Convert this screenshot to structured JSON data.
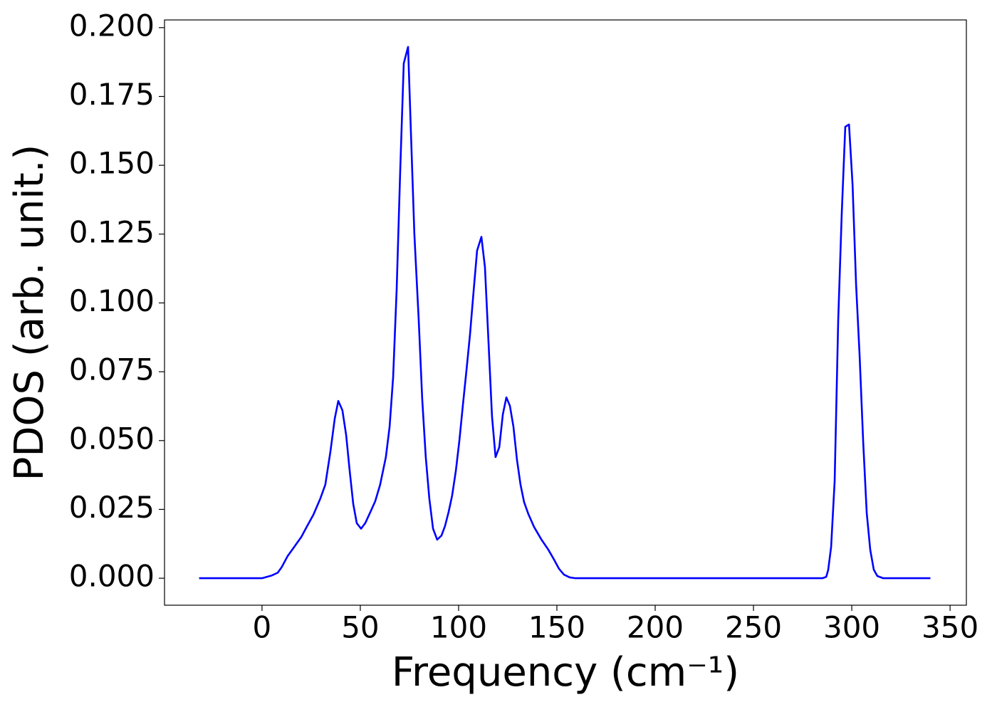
{
  "chart_data": {
    "type": "line",
    "xlabel": "Frequency (cm⁻¹)",
    "ylabel": "PDOS (arb. unit.)",
    "xlim": [
      -49.6,
      358.3
    ],
    "ylim": [
      -0.0098,
      0.2028
    ],
    "xticks": [
      0,
      50,
      100,
      150,
      200,
      250,
      300,
      350
    ],
    "yticks": [
      {
        "value": 0,
        "label": "0.000"
      },
      {
        "value": 0.025,
        "label": "0.025"
      },
      {
        "value": 0.05,
        "label": "0.050"
      },
      {
        "value": 0.075,
        "label": "0.075"
      },
      {
        "value": 0.1,
        "label": "0.100"
      },
      {
        "value": 0.125,
        "label": "0.125"
      },
      {
        "value": 0.15,
        "label": "0.150"
      },
      {
        "value": 0.175,
        "label": "0.175"
      },
      {
        "value": 0.2,
        "label": "0.200"
      }
    ],
    "grid": false,
    "series": [
      {
        "color": "#0000ff",
        "x": [
          -32,
          0,
          5,
          8,
          10,
          13,
          16,
          20,
          23,
          26.1,
          29.7,
          32.2,
          34.8,
          37.0,
          38.8,
          40.9,
          42.8,
          44.6,
          46.4,
          48.2,
          50.4,
          52.5,
          55.1,
          57.6,
          60.1,
          63,
          64.9,
          66.7,
          68.5,
          70.3,
          72.1,
          74.3,
          75.7,
          77.5,
          79.7,
          81.5,
          83.3,
          85.1,
          87,
          89.1,
          91.3,
          93.1,
          94.9,
          96.7,
          98.6,
          100.4,
          102.2,
          104,
          105.8,
          107.6,
          109.4,
          111.6,
          113.4,
          115.2,
          117,
          118.8,
          120.7,
          122.5,
          124.3,
          126.1,
          127.9,
          129.7,
          131.5,
          133.3,
          135.5,
          138.4,
          142,
          145.7,
          148.6,
          151.1,
          153.6,
          156.5,
          159.4,
          285.1,
          287,
          288,
          289.5,
          291.3,
          293.1,
          294.9,
          296.7,
          298.6,
          300.4,
          302.2,
          304,
          305.8,
          307.6,
          309.4,
          311.2,
          313,
          316,
          340
        ],
        "values": [
          0,
          0,
          0.001,
          0.002,
          0.004,
          0.008,
          0.011,
          0.015,
          0.019,
          0.023,
          0.029,
          0.034,
          0.046,
          0.058,
          0.0644,
          0.061,
          0.052,
          0.039,
          0.027,
          0.02,
          0.018,
          0.02,
          0.024,
          0.028,
          0.034,
          0.044,
          0.055,
          0.073,
          0.105,
          0.148,
          0.187,
          0.193,
          0.163,
          0.125,
          0.094,
          0.065,
          0.044,
          0.029,
          0.018,
          0.014,
          0.0155,
          0.019,
          0.024,
          0.03,
          0.039,
          0.05,
          0.063,
          0.0755,
          0.0885,
          0.104,
          0.119,
          0.124,
          0.113,
          0.086,
          0.0587,
          0.044,
          0.0476,
          0.0595,
          0.0657,
          0.0626,
          0.055,
          0.043,
          0.034,
          0.0277,
          0.0233,
          0.0186,
          0.0142,
          0.0103,
          0.0067,
          0.0034,
          0.0013,
          0.0003,
          0,
          0,
          0.0005,
          0.003,
          0.0114,
          0.0354,
          0.0937,
          0.1325,
          0.164,
          0.1648,
          0.143,
          0.1066,
          0.0807,
          0.0497,
          0.0238,
          0.0103,
          0.0031,
          0.0008,
          0,
          0
        ]
      }
    ]
  }
}
